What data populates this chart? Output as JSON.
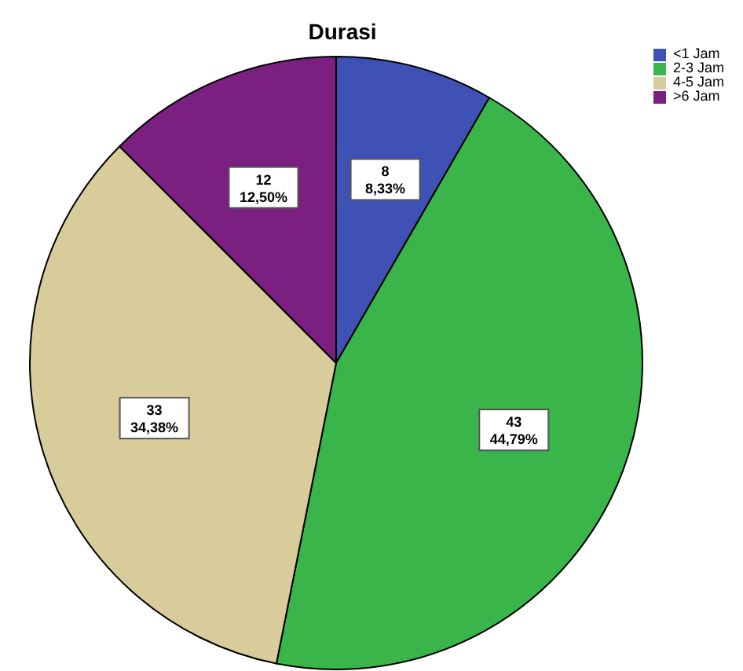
{
  "chart_data": {
    "type": "pie",
    "title": "Durasi",
    "categories": [
      "<1 Jam",
      "2-3 Jam",
      "4-5 Jam",
      ">6 Jam"
    ],
    "values": [
      8,
      43,
      33,
      12
    ],
    "colors": [
      "#3f51b5",
      "#39b54a",
      "#d8cc9a",
      "#7b1f80"
    ],
    "value_labels": [
      "8\n8,33%",
      "43\n44,79%",
      "33\n34,38%",
      "12\n12,50%"
    ],
    "legend": "top right"
  }
}
